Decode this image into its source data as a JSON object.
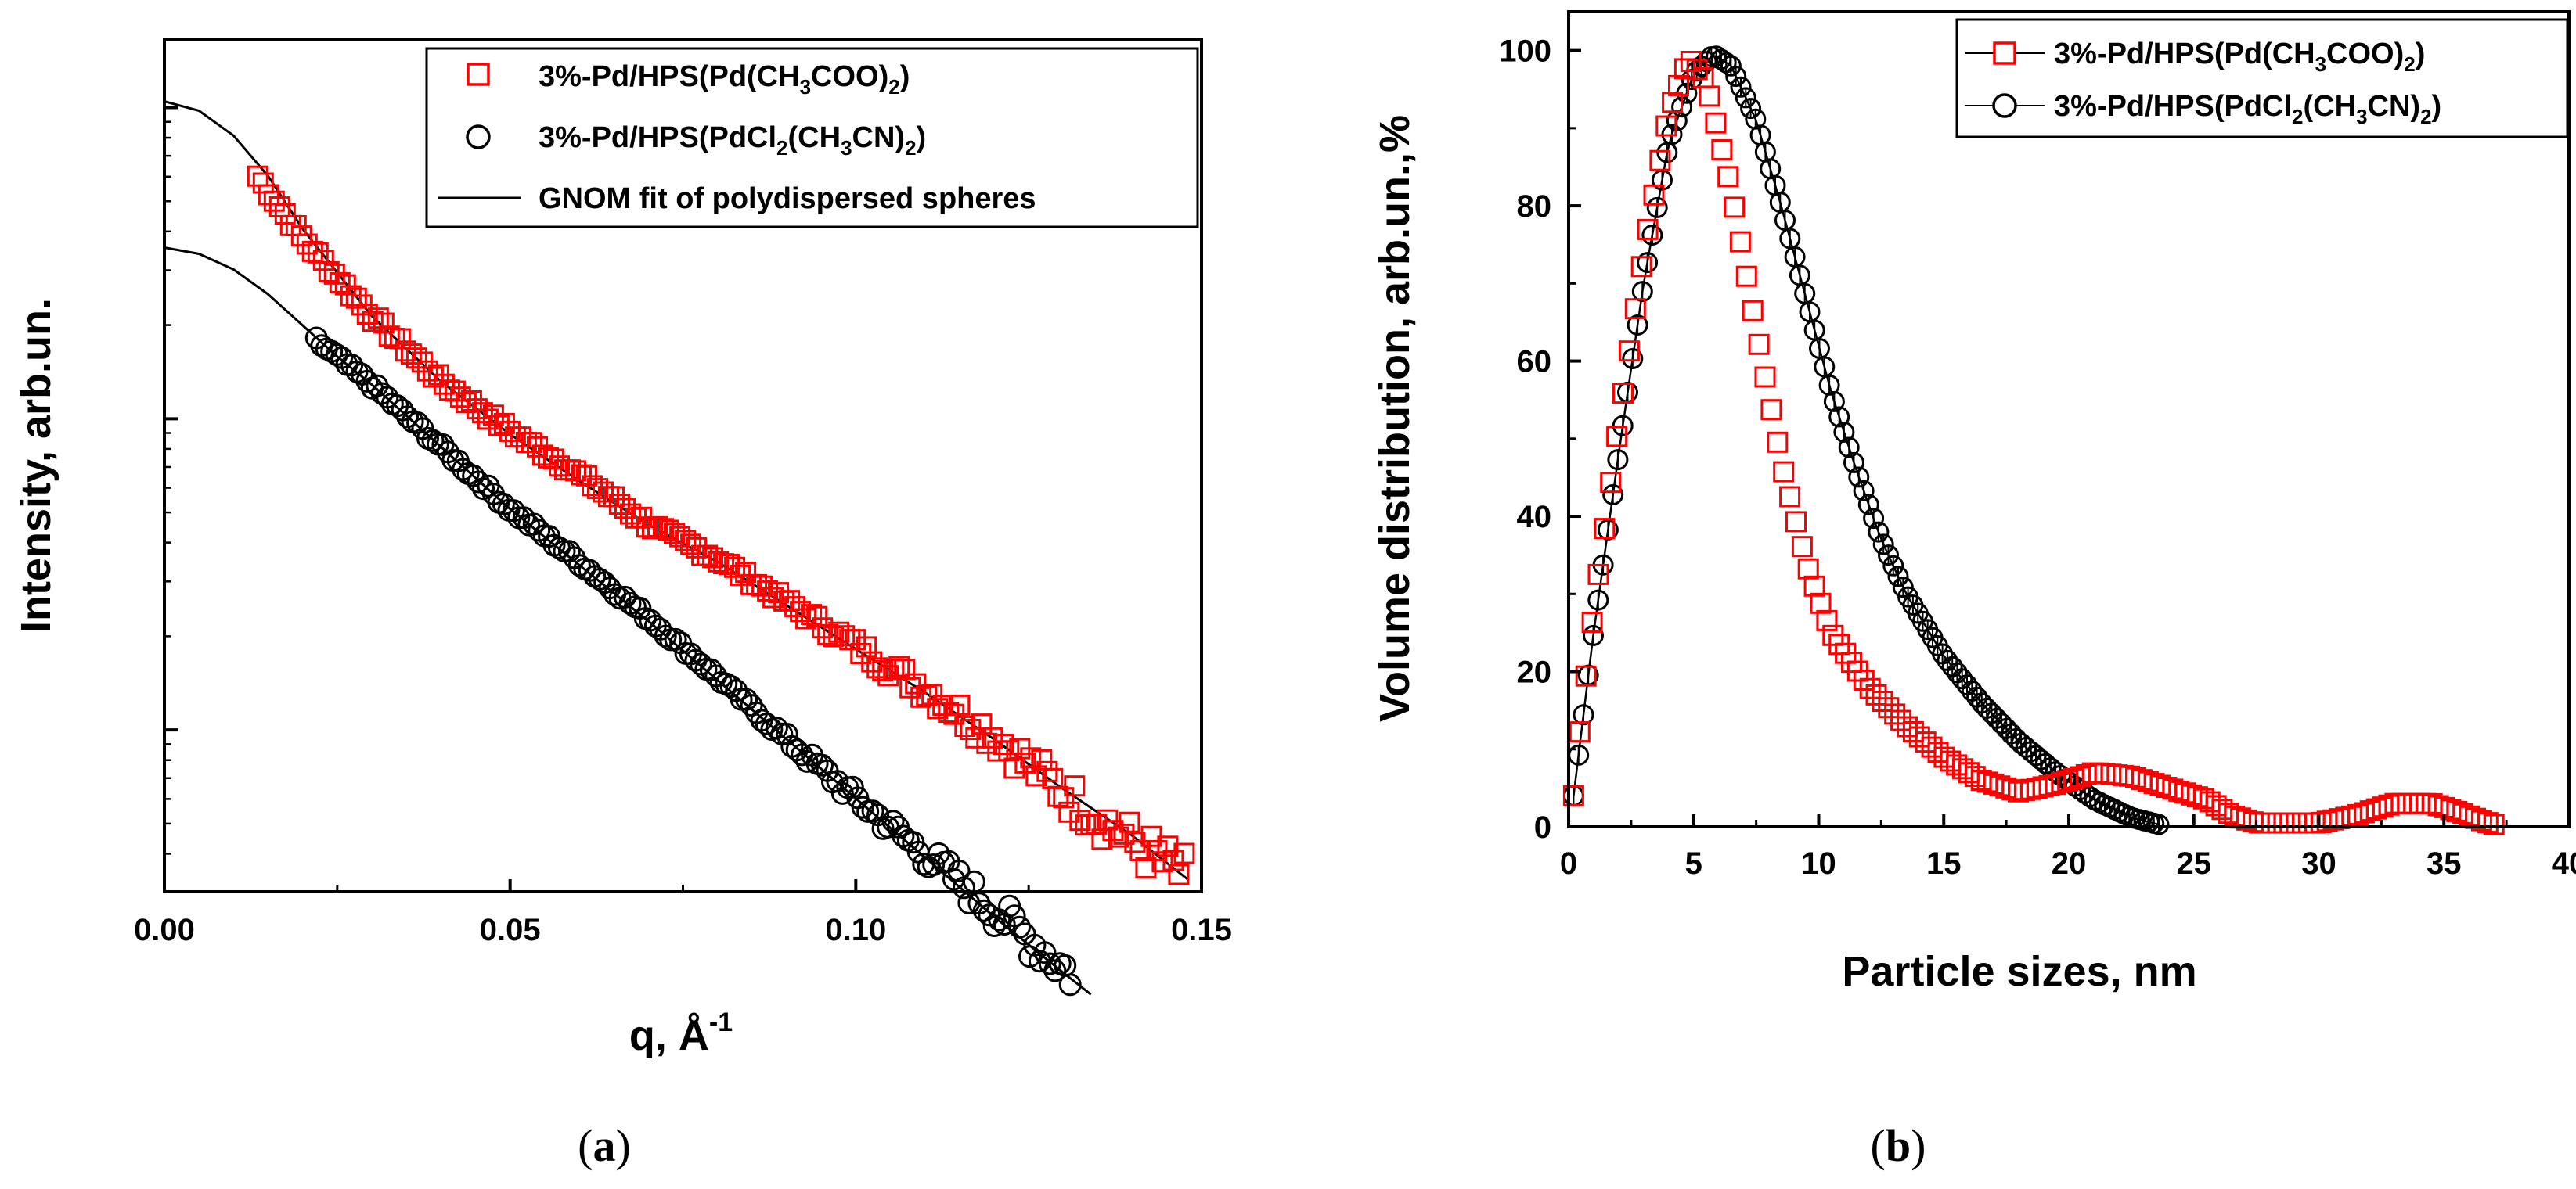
{
  "chart_data": [
    {
      "type": "scatter",
      "panel_label": "(a)",
      "caption_open": "(",
      "caption_letter": "a",
      "caption_close": ")",
      "title": "",
      "xlabel": "q, Å",
      "xlabel_sup": "-1",
      "ylabel": "Intensity, arb.un.",
      "y_scale": "log",
      "xlim": [
        0.0,
        0.15
      ],
      "ylim_log10": [
        -0.12,
        2.62
      ],
      "x_ticks": [
        "0.00",
        "0.05",
        "0.10",
        "0.15"
      ],
      "x_tick_values": [
        0.0,
        0.05,
        0.1,
        0.15
      ],
      "y_major_tick_log10": [
        0.4,
        1.4,
        2.4
      ],
      "legend": {
        "placement": "top-right",
        "entries": [
          {
            "marker": "square",
            "color": "#ff0000",
            "prefix": "3%-Pd/HPS(Pd(CH",
            "sub1": "3",
            "mid": "COO)",
            "sub2": "2",
            "suffix": ")"
          },
          {
            "marker": "circle",
            "color": "#000000",
            "prefix": "3%-Pd/HPS(PdCl",
            "sub1": "2",
            "mid": "(CH",
            "sub2": "3",
            "mid2": "CN)",
            "sub3": "2",
            "suffix": ")"
          },
          {
            "marker": "line",
            "color": "#000000",
            "text": "GNOM fit of polydispersed spheres"
          }
        ]
      },
      "series": [
        {
          "name": "3%-Pd/HPS(Pd(CH3COO)2)",
          "marker": "square",
          "color": "#ff0000",
          "q_start": 0.0135,
          "q_end": 0.1475,
          "count": 170,
          "log10_anchors": [
            [
              0.0135,
              2.18
            ],
            [
              0.02,
              1.98
            ],
            [
              0.03,
              1.73
            ],
            [
              0.04,
              1.52
            ],
            [
              0.05,
              1.36
            ],
            [
              0.06,
              1.22
            ],
            [
              0.07,
              1.06
            ],
            [
              0.08,
              0.95
            ],
            [
              0.09,
              0.81
            ],
            [
              0.1,
              0.67
            ],
            [
              0.11,
              0.53
            ],
            [
              0.12,
              0.38
            ],
            [
              0.13,
              0.2
            ],
            [
              0.14,
              0.04
            ],
            [
              0.1475,
              -0.07
            ]
          ]
        },
        {
          "name": "3%-Pd/HPS(PdCl2(CH3CN)2)",
          "marker": "circle",
          "color": "#000000",
          "q_start": 0.022,
          "q_end": 0.131,
          "count": 150,
          "log10_anchors": [
            [
              0.022,
              1.65
            ],
            [
              0.03,
              1.51
            ],
            [
              0.04,
              1.31
            ],
            [
              0.05,
              1.11
            ],
            [
              0.06,
              0.94
            ],
            [
              0.07,
              0.76
            ],
            [
              0.08,
              0.57
            ],
            [
              0.09,
              0.37
            ],
            [
              0.1,
              0.18
            ],
            [
              0.11,
              0.0
            ],
            [
              0.12,
              -0.18
            ],
            [
              0.131,
              -0.38
            ]
          ]
        },
        {
          "name": "GNOM fit of polydispersed spheres",
          "marker": "line",
          "color": "#000000",
          "curves": [
            [
              [
                0.0,
                2.42
              ],
              [
                0.005,
                2.39
              ],
              [
                0.01,
                2.31
              ],
              [
                0.015,
                2.18
              ],
              [
                0.02,
                2.01
              ],
              [
                0.03,
                1.73
              ],
              [
                0.04,
                1.52
              ],
              [
                0.05,
                1.35
              ],
              [
                0.06,
                1.2
              ],
              [
                0.07,
                1.06
              ],
              [
                0.08,
                0.94
              ],
              [
                0.09,
                0.8
              ],
              [
                0.1,
                0.66
              ],
              [
                0.11,
                0.52
              ],
              [
                0.12,
                0.37
              ],
              [
                0.13,
                0.21
              ],
              [
                0.14,
                0.06
              ],
              [
                0.148,
                -0.08
              ]
            ],
            [
              [
                0.0,
                1.95
              ],
              [
                0.005,
                1.93
              ],
              [
                0.01,
                1.88
              ],
              [
                0.015,
                1.8
              ],
              [
                0.02,
                1.7
              ],
              [
                0.025,
                1.6
              ],
              [
                0.03,
                1.51
              ],
              [
                0.04,
                1.31
              ],
              [
                0.05,
                1.11
              ],
              [
                0.06,
                0.93
              ],
              [
                0.07,
                0.75
              ],
              [
                0.08,
                0.56
              ],
              [
                0.09,
                0.37
              ],
              [
                0.1,
                0.18
              ],
              [
                0.11,
                -0.01
              ],
              [
                0.12,
                -0.2
              ],
              [
                0.13,
                -0.38
              ],
              [
                0.134,
                -0.45
              ]
            ]
          ]
        }
      ]
    },
    {
      "type": "scatter",
      "panel_label": "(b)",
      "caption_open": "(",
      "caption_letter": "b",
      "caption_close": ")",
      "title": "",
      "xlabel": "Particle sizes, nm",
      "ylabel": "Volume distribution, arb.un.,%",
      "xlim": [
        0,
        40
      ],
      "ylim": [
        0,
        105
      ],
      "x_ticks": [
        "0",
        "5",
        "10",
        "15",
        "20",
        "25",
        "30",
        "35",
        "40"
      ],
      "x_tick_values": [
        0,
        5,
        10,
        15,
        20,
        25,
        30,
        35,
        40
      ],
      "y_ticks": [
        "0",
        "20",
        "40",
        "60",
        "80",
        "100"
      ],
      "y_tick_values": [
        0,
        20,
        40,
        60,
        80,
        100
      ],
      "legend": {
        "placement": "top-right",
        "entries": [
          {
            "marker": "square",
            "color": "#ff0000",
            "prefix": "3%-Pd/HPS(Pd(CH",
            "sub1": "3",
            "mid": "COO)",
            "sub2": "2",
            "suffix": ")"
          },
          {
            "marker": "circle",
            "color": "#000000",
            "prefix": "3%-Pd/HPS(PdCl",
            "sub1": "2",
            "mid": "(CH",
            "sub2": "3",
            "mid2": "CN)",
            "sub3": "2",
            "suffix": ")"
          }
        ]
      },
      "series": [
        {
          "name": "3%-Pd/HPS(Pd(CH3COO)2)",
          "marker": "square",
          "color": "#ff0000",
          "x_start": 0.2,
          "x_end": 37.0,
          "count": 150,
          "anchors": [
            [
              0.2,
              4
            ],
            [
              0.5,
              14
            ],
            [
              1.0,
              28
            ],
            [
              2.0,
              52
            ],
            [
              3.0,
              74
            ],
            [
              4.0,
              92
            ],
            [
              4.8,
              99
            ],
            [
              5.5,
              96
            ],
            [
              6.5,
              82
            ],
            [
              7.5,
              64
            ],
            [
              8.5,
              47
            ],
            [
              9.5,
              34
            ],
            [
              10.5,
              25
            ],
            [
              12.0,
              18
            ],
            [
              13.5,
              13
            ],
            [
              15.0,
              9
            ],
            [
              16.5,
              6
            ],
            [
              18.0,
              4.5
            ],
            [
              19.5,
              5.5
            ],
            [
              21.0,
              7
            ],
            [
              22.5,
              6.5
            ],
            [
              24.0,
              5
            ],
            [
              25.5,
              3.5
            ],
            [
              26.5,
              1.5
            ],
            [
              27.5,
              0.5
            ],
            [
              30.0,
              0.5
            ],
            [
              31.5,
              1.5
            ],
            [
              33.0,
              3
            ],
            [
              34.5,
              3
            ],
            [
              35.5,
              2
            ],
            [
              36.5,
              0.8
            ],
            [
              37.0,
              0.3
            ]
          ]
        },
        {
          "name": "3%-Pd/HPS(PdCl2(CH3CN)2)",
          "marker": "circle",
          "color": "#000000",
          "x_start": 0.2,
          "x_end": 23.6,
          "count": 120,
          "anchors": [
            [
              0.2,
              4
            ],
            [
              0.5,
              12
            ],
            [
              1.0,
              25
            ],
            [
              2.0,
              48
            ],
            [
              3.0,
              70
            ],
            [
              4.0,
              88
            ],
            [
              5.0,
              97
            ],
            [
              5.8,
              99.5
            ],
            [
              6.5,
              98
            ],
            [
              7.5,
              91
            ],
            [
              8.5,
              80
            ],
            [
              9.5,
              68
            ],
            [
              10.5,
              56
            ],
            [
              11.5,
              46
            ],
            [
              12.5,
              37
            ],
            [
              13.5,
              30
            ],
            [
              15.0,
              22
            ],
            [
              16.5,
              16
            ],
            [
              18.0,
              11
            ],
            [
              19.5,
              7
            ],
            [
              21.0,
              3.5
            ],
            [
              22.5,
              1.2
            ],
            [
              23.6,
              0.3
            ]
          ]
        }
      ]
    }
  ]
}
